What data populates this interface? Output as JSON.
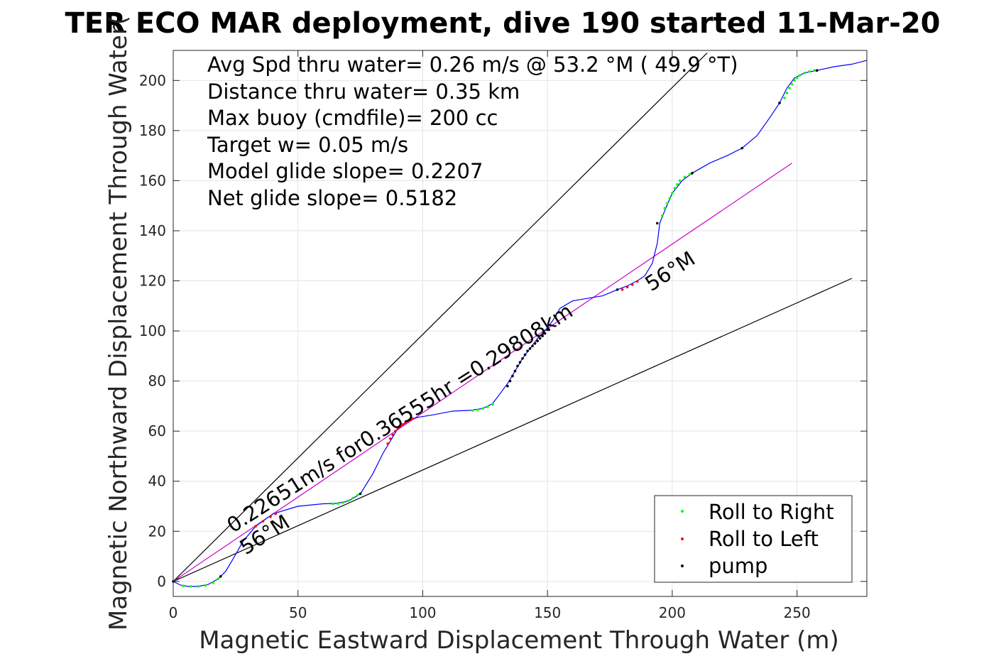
{
  "chart_data": {
    "type": "line",
    "title": "TER ECO MAR deployment, dive 190 started 11-Mar-20",
    "xlabel": "Magnetic Eastward Displacement Through Water (m)",
    "ylabel": "Magnetic Northward Displacement Through Water(",
    "xlim": [
      0,
      278
    ],
    "ylim": [
      -6,
      212
    ],
    "xticks": [
      0,
      50,
      100,
      150,
      200,
      250
    ],
    "yticks": [
      0,
      20,
      40,
      60,
      80,
      100,
      120,
      140,
      160,
      180,
      200
    ],
    "grid": true,
    "legend_position": "bottom-right",
    "info_text": [
      "Avg Spd thru water=  0.26 m/s @  53.2 °M ( 49.9 °T)",
      "Distance thru water=  0.35 km",
      "Max buoy (cmdfile)= 200 cc",
      "Target w= 0.05 m/s",
      "Model glide slope= 0.2207",
      "Net glide slope= 0.5182"
    ],
    "track": {
      "color": "#0000ff",
      "x": [
        0,
        3,
        6,
        10,
        14,
        18,
        21,
        24,
        28,
        33,
        40,
        50,
        60,
        65,
        70,
        75,
        80,
        84,
        87,
        90,
        94,
        98,
        104,
        112,
        119,
        124,
        128,
        131,
        134,
        137,
        140,
        143,
        146,
        149,
        152,
        155,
        160,
        166,
        172,
        178,
        182,
        186,
        189,
        192,
        194,
        195,
        197,
        200,
        204,
        208,
        215,
        222,
        228,
        234,
        239,
        243,
        246,
        249,
        253,
        258,
        265,
        272,
        278
      ],
      "y": [
        0,
        -1.5,
        -2,
        -2,
        -1.2,
        1,
        4,
        9,
        16,
        22,
        27,
        30,
        31,
        31.1,
        32,
        35,
        43,
        51,
        56,
        61,
        64,
        65.5,
        66.5,
        68,
        68.3,
        69,
        71,
        75,
        79,
        84,
        89,
        93,
        97,
        100,
        104,
        109,
        112,
        113,
        114,
        116.5,
        118,
        120,
        122,
        127,
        135,
        143,
        148,
        155,
        160,
        163,
        167,
        170,
        173,
        178,
        185,
        191,
        197,
        201,
        203,
        204,
        205.5,
        206.5,
        208
      ]
    },
    "markers": [
      {
        "name": "Roll to Right",
        "color": "#00ff00",
        "x": [
          4,
          7,
          10,
          13,
          16,
          18,
          64,
          66,
          68,
          70,
          72,
          74,
          120,
          122,
          124,
          126,
          128,
          153,
          155,
          157,
          196,
          197,
          198,
          199,
          200,
          201,
          202,
          203,
          205,
          207,
          245,
          246,
          247,
          248,
          249,
          250,
          251,
          253,
          255,
          257
        ],
        "y": [
          -1.8,
          -2,
          -2,
          -1.6,
          -0.5,
          1,
          31,
          31.1,
          31.5,
          32.2,
          33.3,
          34.5,
          68.2,
          68.5,
          69,
          69.7,
          70.7,
          105.5,
          107.5,
          109,
          146,
          149,
          151,
          153,
          155,
          157,
          158.5,
          160,
          161.5,
          162.5,
          193,
          195,
          197,
          198.5,
          200,
          201,
          202,
          203,
          203.6,
          204
        ]
      },
      {
        "name": "Roll to Left",
        "color": "#ff0000",
        "x": [
          33,
          36,
          39,
          41,
          86,
          87,
          88,
          89,
          90,
          91,
          92,
          93,
          94,
          95,
          96,
          180,
          182,
          184,
          186
        ],
        "y": [
          22,
          24,
          25.8,
          27,
          55,
          57,
          58.5,
          60,
          61,
          62,
          62.7,
          63.3,
          63.9,
          64.5,
          65,
          116.5,
          117.5,
          118.5,
          119.8
        ]
      },
      {
        "name": "pump",
        "color": "#000000",
        "x": [
          0,
          19,
          75,
          134,
          135,
          136,
          137,
          138,
          139,
          140,
          141,
          142,
          143,
          144,
          145,
          146,
          147,
          148,
          149,
          150,
          178,
          194,
          208,
          228,
          243,
          258
        ],
        "y": [
          0,
          2,
          35,
          78,
          80,
          82,
          84,
          86,
          87.5,
          89,
          90.5,
          92,
          93,
          94,
          95,
          96,
          97,
          98,
          99,
          100.5,
          116.5,
          143,
          163,
          173,
          191,
          204
        ]
      }
    ],
    "reference_lines": [
      {
        "label": "56°M",
        "color": "#000000",
        "x": [
          0,
          214
        ],
        "y": [
          0,
          211
        ]
      },
      {
        "label": "56°M",
        "color": "#000000",
        "x": [
          0,
          272
        ],
        "y": [
          0,
          121
        ]
      },
      {
        "label": "0.22651m/s for0.36555hr =0.29808km",
        "color": "#cc00cc",
        "x": [
          0,
          248
        ],
        "y": [
          0,
          167
        ]
      }
    ],
    "annotations": {
      "upper_bearing": "56°M",
      "lower_bearing": "56°M",
      "net_track": "0.22651m/s for0.36555hr =0.29808km"
    }
  }
}
